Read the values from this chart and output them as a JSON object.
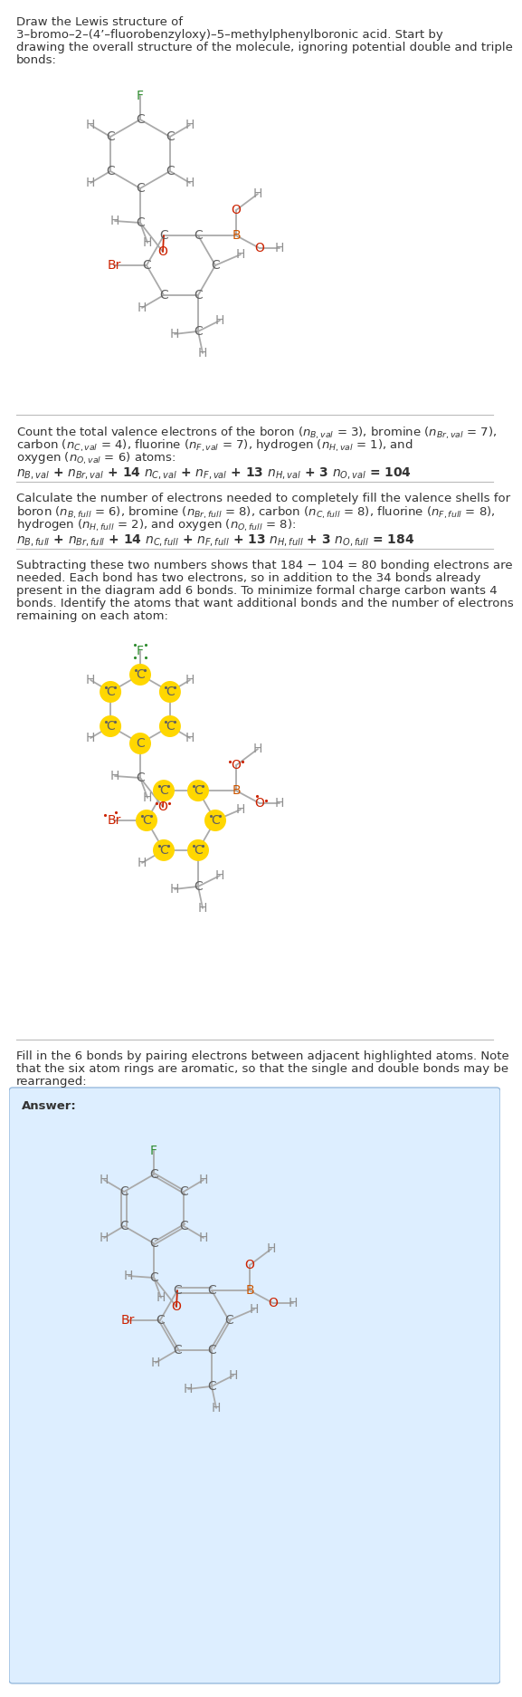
{
  "bg_color": "#ffffff",
  "text_color": "#333333",
  "C_color": "#606060",
  "H_color": "#909090",
  "F_color": "#2e8b2e",
  "Br_color": "#cc2200",
  "O_color": "#cc2200",
  "B_color": "#cc5500",
  "highlight_fill": "#FFD700",
  "bond_gray": "#aaaaaa",
  "answer_bg": "#ddeeff",
  "divider_color": "#bbbbbb",
  "s1_l1": "Draw the Lewis structure of",
  "s1_l2": "3–bromo–2–(4’–fluorobenzyloxy)–5–methylphenylboronic acid. Start by",
  "s1_l3": "drawing the overall structure of the molecule, ignoring potential double and triple",
  "s1_l4": "bonds:",
  "s2_l1": "Count the total valence electrons of the boron ($n_{B,val}$ = 3), bromine ($n_{Br,val}$ = 7),",
  "s2_l2": "carbon ($n_{C,val}$ = 4), fluorine ($n_{F,val}$ = 7), hydrogen ($n_{H,val}$ = 1), and",
  "s2_l3": "oxygen ($n_{O,val}$ = 6) atoms:",
  "s2_eq": "$n_{B,val}$ + $n_{Br,val}$ + 14 $n_{C,val}$ + $n_{F,val}$ + 13 $n_{H,val}$ + 3 $n_{O,val}$ = 104",
  "s3_l1": "Calculate the number of electrons needed to completely fill the valence shells for",
  "s3_l2": "boron ($n_{B,full}$ = 6), bromine ($n_{Br,full}$ = 8), carbon ($n_{C,full}$ = 8), fluorine ($n_{F,full}$ = 8),",
  "s3_l3": "hydrogen ($n_{H,full}$ = 2), and oxygen ($n_{O,full}$ = 8):",
  "s3_eq": "$n_{B,full}$ + $n_{Br,full}$ + 14 $n_{C,full}$ + $n_{F,full}$ + 13 $n_{H,full}$ + 3 $n_{O,full}$ = 184",
  "s4_l1": "Subtracting these two numbers shows that 184 − 104 = 80 bonding electrons are",
  "s4_l2": "needed. Each bond has two electrons, so in addition to the 34 bonds already",
  "s4_l3": "present in the diagram add 6 bonds. To minimize formal charge carbon wants 4",
  "s4_l4": "bonds. Identify the atoms that want additional bonds and the number of electrons",
  "s4_l5": "remaining on each atom:",
  "s5_l1": "Fill in the 6 bonds by pairing electrons between adjacent highlighted atoms. Note",
  "s5_l2": "that the six atom rings are aromatic, so that the single and double bonds may be",
  "s5_l3": "rearranged:",
  "answer_label": "Answer:"
}
